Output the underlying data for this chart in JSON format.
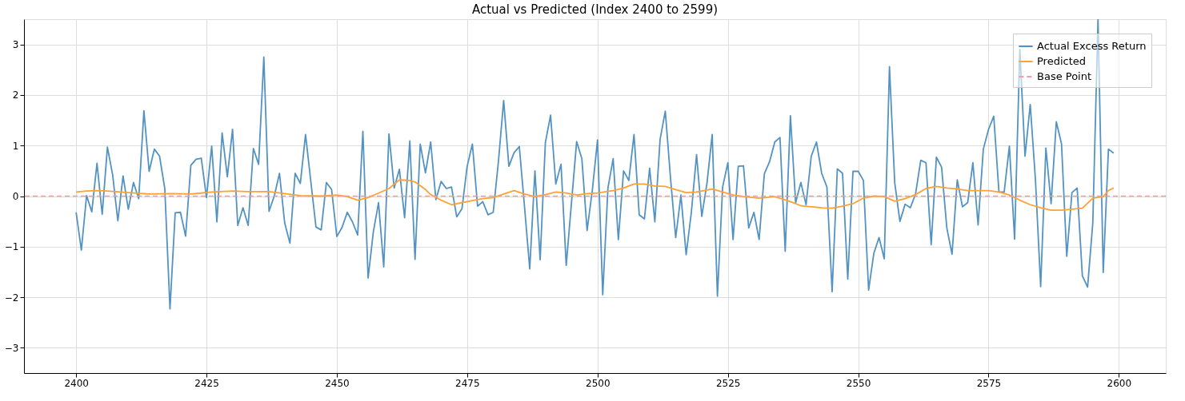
{
  "chart_data": {
    "type": "line",
    "title": "Actual vs Predicted (Index 2400 to 2599)",
    "x": [
      2400,
      2401,
      2402,
      2403,
      2404,
      2405,
      2406,
      2407,
      2408,
      2409,
      2410,
      2411,
      2412,
      2413,
      2414,
      2415,
      2416,
      2417,
      2418,
      2419,
      2420,
      2421,
      2422,
      2423,
      2424,
      2425,
      2426,
      2427,
      2428,
      2429,
      2430,
      2431,
      2432,
      2433,
      2434,
      2435,
      2436,
      2437,
      2438,
      2439,
      2440,
      2441,
      2442,
      2443,
      2444,
      2445,
      2446,
      2447,
      2448,
      2449,
      2450,
      2451,
      2452,
      2453,
      2454,
      2455,
      2456,
      2457,
      2458,
      2459,
      2460,
      2461,
      2462,
      2463,
      2464,
      2465,
      2466,
      2467,
      2468,
      2469,
      2470,
      2471,
      2472,
      2473,
      2474,
      2475,
      2476,
      2477,
      2478,
      2479,
      2480,
      2481,
      2482,
      2483,
      2484,
      2485,
      2486,
      2487,
      2488,
      2489,
      2490,
      2491,
      2492,
      2493,
      2494,
      2495,
      2496,
      2497,
      2498,
      2499,
      2500,
      2501,
      2502,
      2503,
      2504,
      2505,
      2506,
      2507,
      2508,
      2509,
      2510,
      2511,
      2512,
      2513,
      2514,
      2515,
      2516,
      2517,
      2518,
      2519,
      2520,
      2521,
      2522,
      2523,
      2524,
      2525,
      2526,
      2527,
      2528,
      2529,
      2530,
      2531,
      2532,
      2533,
      2534,
      2535,
      2536,
      2537,
      2538,
      2539,
      2540,
      2541,
      2542,
      2543,
      2544,
      2545,
      2546,
      2547,
      2548,
      2549,
      2550,
      2551,
      2552,
      2553,
      2554,
      2555,
      2556,
      2557,
      2558,
      2559,
      2560,
      2561,
      2562,
      2563,
      2564,
      2565,
      2566,
      2567,
      2568,
      2569,
      2570,
      2571,
      2572,
      2573,
      2574,
      2575,
      2576,
      2577,
      2578,
      2579,
      2580,
      2581,
      2582,
      2583,
      2584,
      2585,
      2586,
      2587,
      2588,
      2589,
      2590,
      2591,
      2592,
      2593,
      2594,
      2595,
      2596,
      2597,
      2598,
      2599
    ],
    "series": [
      {
        "name": "Actual Excess Return",
        "color": "#5393c3",
        "values": [
          -0.32,
          -1.07,
          0.01,
          -0.31,
          0.65,
          -0.36,
          0.97,
          0.42,
          -0.49,
          0.4,
          -0.26,
          0.27,
          -0.05,
          1.69,
          0.49,
          0.93,
          0.79,
          0.15,
          -2.23,
          -0.33,
          -0.32,
          -0.79,
          0.61,
          0.73,
          0.75,
          -0.03,
          0.99,
          -0.51,
          1.25,
          0.38,
          1.32,
          -0.58,
          -0.23,
          -0.58,
          0.94,
          0.63,
          2.75,
          -0.3,
          0.0,
          0.45,
          -0.53,
          -0.93,
          0.45,
          0.25,
          1.22,
          0.3,
          -0.61,
          -0.67,
          0.27,
          0.13,
          -0.8,
          -0.62,
          -0.32,
          -0.51,
          -0.77,
          1.28,
          -1.62,
          -0.71,
          -0.13,
          -1.4,
          1.23,
          0.16,
          0.53,
          -0.43,
          1.09,
          -1.25,
          1.03,
          0.46,
          1.07,
          -0.07,
          0.29,
          0.15,
          0.18,
          -0.41,
          -0.25,
          0.59,
          1.03,
          -0.2,
          -0.11,
          -0.37,
          -0.32,
          0.69,
          1.89,
          0.59,
          0.86,
          0.98,
          -0.21,
          -1.44,
          0.5,
          -1.26,
          1.06,
          1.6,
          0.24,
          0.63,
          -1.37,
          -0.14,
          1.08,
          0.74,
          -0.68,
          0.11,
          1.11,
          -1.95,
          0.16,
          0.74,
          -0.86,
          0.5,
          0.31,
          1.22,
          -0.37,
          -0.45,
          0.55,
          -0.51,
          1.12,
          1.68,
          0.36,
          -0.82,
          0.02,
          -1.16,
          -0.32,
          0.82,
          -0.4,
          0.26,
          1.22,
          -1.98,
          0.18,
          0.66,
          -0.86,
          0.59,
          0.6,
          -0.63,
          -0.32,
          -0.86,
          0.44,
          0.68,
          1.07,
          1.16,
          -1.09,
          1.59,
          -0.13,
          0.27,
          -0.17,
          0.79,
          1.07,
          0.45,
          0.18,
          -1.89,
          0.54,
          0.45,
          -1.64,
          0.49,
          0.49,
          0.31,
          -1.86,
          -1.13,
          -0.82,
          -1.24,
          2.56,
          0.27,
          -0.5,
          -0.16,
          -0.23,
          0.04,
          0.71,
          0.66,
          -0.96,
          0.77,
          0.57,
          -0.63,
          -1.15,
          0.32,
          -0.21,
          -0.13,
          0.66,
          -0.57,
          0.93,
          1.32,
          1.58,
          0.08,
          0.08,
          0.99,
          -0.85,
          2.9,
          0.79,
          1.81,
          0.32,
          -1.79,
          0.95,
          -0.15,
          1.47,
          1.03,
          -1.19,
          0.07,
          0.16,
          -1.58,
          -1.8,
          -0.53,
          3.5,
          -1.51,
          0.93,
          0.85
        ]
      },
      {
        "name": "Predicted",
        "color": "#ffa135",
        "x": [
          2400,
          2402,
          2404,
          2406,
          2410,
          2414,
          2418,
          2422,
          2426,
          2430,
          2433,
          2437,
          2440,
          2443,
          2447,
          2450,
          2452,
          2454,
          2456,
          2458,
          2460,
          2462,
          2464,
          2465,
          2467,
          2468,
          2470,
          2472,
          2473,
          2475,
          2478,
          2480,
          2482,
          2484,
          2486,
          2488,
          2490,
          2492,
          2494,
          2496,
          2498,
          2500,
          2503,
          2505,
          2507,
          2509,
          2511,
          2513,
          2515,
          2517,
          2519,
          2521,
          2522,
          2524,
          2526,
          2528,
          2531,
          2534,
          2535,
          2537,
          2539,
          2541,
          2543,
          2545,
          2547,
          2549,
          2551,
          2553,
          2555,
          2557,
          2559,
          2561,
          2563,
          2565,
          2567,
          2569,
          2571,
          2573,
          2575,
          2577,
          2579,
          2581,
          2583,
          2585,
          2587,
          2589,
          2591,
          2593,
          2595,
          2597,
          2598,
          2599
        ],
        "values": [
          0.08,
          0.1,
          0.11,
          0.1,
          0.07,
          0.04,
          0.05,
          0.04,
          0.08,
          0.1,
          0.09,
          0.09,
          0.05,
          0.01,
          0.0,
          0.02,
          -0.01,
          -0.08,
          -0.03,
          0.06,
          0.15,
          0.32,
          0.31,
          0.28,
          0.13,
          0.03,
          -0.08,
          -0.17,
          -0.15,
          -0.11,
          -0.05,
          -0.03,
          0.04,
          0.11,
          0.04,
          -0.01,
          0.03,
          0.08,
          0.06,
          0.02,
          0.05,
          0.06,
          0.11,
          0.16,
          0.24,
          0.24,
          0.2,
          0.19,
          0.13,
          0.07,
          0.08,
          0.12,
          0.14,
          0.08,
          0.02,
          -0.01,
          -0.04,
          -0.01,
          -0.04,
          -0.11,
          -0.19,
          -0.21,
          -0.23,
          -0.24,
          -0.2,
          -0.15,
          -0.04,
          0.0,
          -0.01,
          -0.1,
          -0.05,
          0.03,
          0.15,
          0.19,
          0.16,
          0.14,
          0.11,
          0.11,
          0.11,
          0.08,
          0.02,
          -0.08,
          -0.17,
          -0.23,
          -0.28,
          -0.28,
          -0.26,
          -0.24,
          -0.04,
          -0.01,
          0.11,
          0.16
        ]
      }
    ],
    "ref_lines": [
      {
        "axis": "y",
        "value": 0,
        "label": "Base Point",
        "color": "#ff9999",
        "line_style": "dashed"
      }
    ],
    "xlim": [
      2390,
      2609
    ],
    "xticks": [
      2400,
      2425,
      2450,
      2475,
      2500,
      2525,
      2550,
      2575,
      2600
    ],
    "ylim": [
      -3.5,
      3.5
    ],
    "yticks": [
      -3,
      -2,
      -1,
      0,
      1,
      2,
      3
    ],
    "grid": true,
    "legend": "top right",
    "line_style": "solid",
    "marker": "none"
  }
}
